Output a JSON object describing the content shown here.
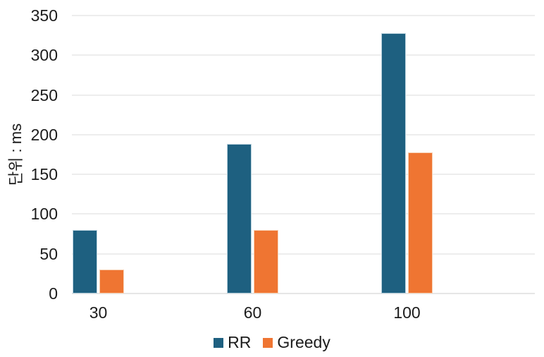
{
  "chart_data": {
    "type": "bar",
    "title": "",
    "xlabel": "",
    "ylabel": "단위 : ms",
    "categories": [
      "30",
      "60",
      "100"
    ],
    "series": [
      {
        "name": "RR",
        "color": "#1E6080",
        "values": [
          80,
          188,
          328
        ]
      },
      {
        "name": "Greedy",
        "color": "#EF7532",
        "values": [
          30,
          80,
          178
        ]
      }
    ],
    "ylim": [
      0,
      350
    ],
    "ytick_step": 50,
    "ytick_labels": [
      "0",
      "50",
      "100",
      "150",
      "200",
      "250",
      "300",
      "350"
    ],
    "grid": "horizontal",
    "legend_position": "bottom-center",
    "background_color": "#ffffff",
    "text_color": "#1c1c1c"
  }
}
